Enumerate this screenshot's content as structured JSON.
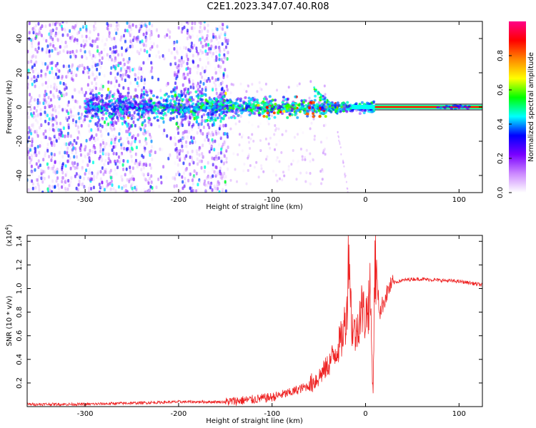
{
  "figure": {
    "title": "C2E1.2023.347.07.40.R08"
  },
  "chart_data": [
    {
      "type": "heatmap",
      "title": "C2E1.2023.347.07.40.R08",
      "xlabel": "Height of straight line (km)",
      "ylabel": "Frequency (Hz)",
      "xlim": [
        -362,
        125
      ],
      "ylim": [
        -50,
        50
      ],
      "x_ticks": [
        -300,
        -200,
        -100,
        0,
        100
      ],
      "y_ticks": [
        -40,
        -20,
        0,
        20,
        40
      ],
      "grid": false,
      "colorbar": {
        "label": "Normalized spectral amplitude",
        "range": [
          0.0,
          1.0
        ],
        "ticks": [
          0.0,
          0.2,
          0.4,
          0.6,
          0.8
        ],
        "colormap": [
          "#ffffff",
          "#cc88ff",
          "#7a00ff",
          "#0000ff",
          "#00ffff",
          "#00ff00",
          "#ffff00",
          "#ff8800",
          "#ff0000",
          "#ff0088"
        ]
      },
      "features": {
        "noise_region_x": [
          -362,
          -150
        ],
        "band_center_hz": 0,
        "strong_band_start_x": 10,
        "strong_band_end_x": 125
      }
    },
    {
      "type": "line",
      "xlabel": "Height of straight line (km)",
      "ylabel": "SNR (10 * v/v)",
      "y_multiplier_label": "(x10",
      "y_multiplier_exp": "4",
      "xlim": [
        -362,
        125
      ],
      "ylim": [
        0,
        1.45
      ],
      "x_ticks": [
        -300,
        -200,
        -100,
        0,
        100
      ],
      "y_ticks": [
        0.2,
        0.4,
        0.6,
        0.8,
        1.0,
        1.2,
        1.4
      ],
      "grid": false,
      "series": [
        {
          "color": "#ee2222",
          "points": [
            [
              -362,
              0.02
            ],
            [
              -300,
              0.02
            ],
            [
              -250,
              0.03
            ],
            [
              -200,
              0.04
            ],
            [
              -150,
              0.04
            ],
            [
              -120,
              0.06
            ],
            [
              -100,
              0.08
            ],
            [
              -80,
              0.12
            ],
            [
              -60,
              0.18
            ],
            [
              -50,
              0.25
            ],
            [
              -40,
              0.35
            ],
            [
              -30,
              0.5
            ],
            [
              -25,
              0.58
            ],
            [
              -20,
              0.8
            ],
            [
              -18,
              1.45
            ],
            [
              -15,
              0.7
            ],
            [
              -10,
              0.6
            ],
            [
              -5,
              0.85
            ],
            [
              0,
              0.75
            ],
            [
              5,
              0.95
            ],
            [
              8,
              0.1
            ],
            [
              10,
              1.25
            ],
            [
              15,
              0.8
            ],
            [
              20,
              0.9
            ],
            [
              25,
              1.0
            ],
            [
              30,
              1.05
            ],
            [
              40,
              1.07
            ],
            [
              50,
              1.08
            ],
            [
              60,
              1.08
            ],
            [
              80,
              1.07
            ],
            [
              100,
              1.06
            ],
            [
              110,
              1.05
            ],
            [
              125,
              1.03
            ]
          ]
        }
      ]
    }
  ]
}
